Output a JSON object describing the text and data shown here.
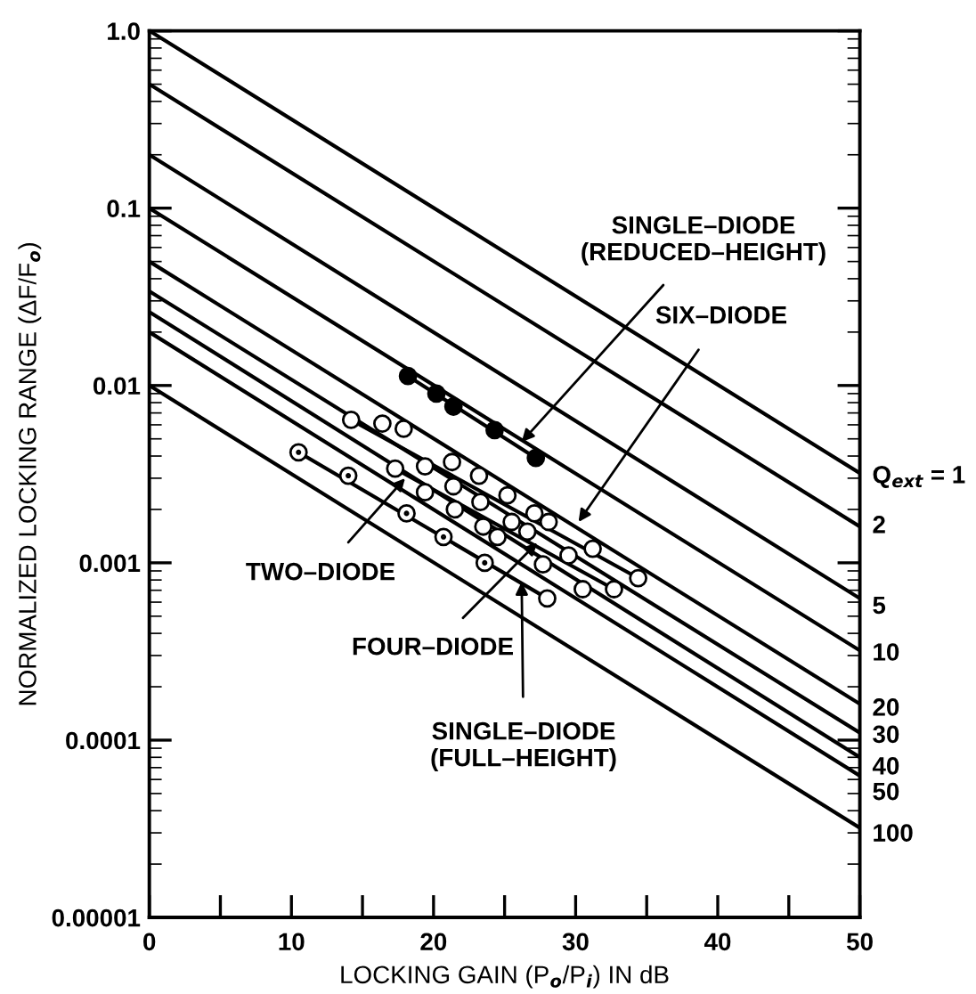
{
  "chart_data": {
    "type": "line",
    "xlabel": "LOCKING GAIN (P$_{o}$/P$_{i}$) IN dB",
    "ylabel": "NORMALIZED LOCKING RANGE (ΔF/F$_{o}$)",
    "log": "y",
    "grid": false,
    "xlim": [
      0,
      50
    ],
    "ylim": [
      1e-05,
      1.0
    ],
    "xticks": [
      0,
      {
        "value": 5,
        "label": null
      },
      10,
      {
        "value": 15,
        "label": null
      },
      20,
      {
        "value": 25,
        "label": null
      },
      30,
      {
        "value": 35,
        "label": null
      },
      40,
      {
        "value": 45,
        "label": null
      },
      50
    ],
    "yticks": [
      {
        "value": 1,
        "label": "1.0"
      },
      {
        "value": 0.1,
        "label": "0.1"
      },
      {
        "value": 0.01,
        "label": "0.01"
      },
      {
        "value": 0.001,
        "label": "0.001"
      },
      {
        "value": 0.0001,
        "label": "0.0001"
      },
      {
        "value": 1e-05,
        "label": "0.00001"
      }
    ],
    "series": [
      {
        "color": "#000000",
        "x": [
          0,
          50
        ],
        "values": [
          1.0,
          0.0032
        ]
      },
      {
        "color": "#000000",
        "x": [
          0,
          50
        ],
        "values": [
          0.5,
          0.0016
        ]
      },
      {
        "color": "#000000",
        "x": [
          0,
          50
        ],
        "values": [
          0.2,
          0.00063
        ]
      },
      {
        "color": "#000000",
        "x": [
          0,
          50
        ],
        "values": [
          0.1,
          0.00032
        ]
      },
      {
        "color": "#000000",
        "x": [
          0,
          50
        ],
        "values": [
          0.05,
          0.00016
        ]
      },
      {
        "color": "#000000",
        "x": [
          0,
          50
        ],
        "values": [
          0.034,
          0.00011
        ]
      },
      {
        "color": "#000000",
        "x": [
          0,
          50
        ],
        "values": [
          0.026,
          8e-05
        ]
      },
      {
        "color": "#000000",
        "x": [
          0,
          50
        ],
        "values": [
          0.02,
          6.3e-05
        ]
      },
      {
        "color": "#000000",
        "x": [
          0,
          50
        ],
        "values": [
          0.01,
          3.2e-05
        ]
      },
      {
        "color": "#000000",
        "x": [
          18.2,
          27.2
        ],
        "values": [
          0.0113,
          0.0039
        ]
      },
      {
        "color": "#000000",
        "x": [
          14.2,
          34.4
        ],
        "values": [
          0.0064,
          0.00082
        ]
      },
      {
        "color": "#000000",
        "x": [
          17.3,
          32.7
        ],
        "values": [
          0.0034,
          0.00071
        ]
      },
      {
        "color": "#000000",
        "x": [
          10.5,
          28.0
        ],
        "values": [
          0.0042,
          0.00063
        ]
      },
      {
        "type": "scatter",
        "marker": "circle",
        "color": "#000000",
        "x": [
          18.2,
          20.2,
          21.4,
          24.3,
          27.2
        ],
        "values": [
          0.0113,
          0.009,
          0.0076,
          0.0056,
          0.0039
        ]
      },
      {
        "type": "scatter",
        "marker": "circle",
        "color": "#ffffff",
        "x": [
          14.2,
          16.4,
          17.9,
          17.3,
          19.4,
          21.3,
          19.4,
          21.4,
          23.2,
          21.5,
          23.3,
          25.2,
          23.5,
          24.5,
          25.5,
          27.1,
          28.1,
          26.6,
          27.7,
          29.5,
          31.2,
          30.5,
          32.7,
          34.4,
          28.0
        ],
        "values": [
          0.0064,
          0.0061,
          0.0057,
          0.0034,
          0.0035,
          0.0037,
          0.0025,
          0.0027,
          0.0031,
          0.002,
          0.0022,
          0.0024,
          0.0016,
          0.0014,
          0.0017,
          0.0019,
          0.0017,
          0.0015,
          0.00098,
          0.0011,
          0.0012,
          0.00071,
          0.00071,
          0.00082,
          0.00063
        ]
      },
      {
        "type": "scatter",
        "marker": "dotted circle",
        "color": "#ffffff",
        "x": [
          10.5,
          14.0,
          18.1,
          20.7,
          23.6
        ],
        "values": [
          0.0042,
          0.0031,
          0.0019,
          0.0014,
          0.001
        ]
      }
    ],
    "annotations": [
      {
        "text": "SINGLE–DIODE\n(REDUCED–HEIGHT)",
        "x": 26.2,
        "y": 0.0048
      },
      {
        "text": "SIX–DIODE",
        "x": 30.2,
        "y": 0.0017
      },
      {
        "text": "TWO–DIODE",
        "x": 18.0,
        "y": 0.003
      },
      {
        "text": "FOUR–DIODE",
        "x": 27.3,
        "y": 0.0013
      },
      {
        "text": "SINGLE–DIODE\n(FULL–HEIGHT)",
        "x": 26.2,
        "y": 0.00078
      },
      {
        "text": "Q$_{ext}$ = 1",
        "x": 50,
        "y": 0.0032
      },
      {
        "text": "2",
        "x": 50,
        "y": 0.0016
      },
      {
        "text": "5",
        "x": 50,
        "y": 0.00063
      },
      {
        "text": "10",
        "x": 50,
        "y": 0.00032
      },
      {
        "text": "20",
        "x": 50,
        "y": 0.00016
      },
      {
        "text": "30",
        "x": 50,
        "y": 0.00011
      },
      {
        "text": "40",
        "x": 50,
        "y": 8e-05
      },
      {
        "text": "50",
        "x": 50,
        "y": 6.3e-05
      },
      {
        "text": "100",
        "x": 50,
        "y": 3.2e-05
      }
    ]
  }
}
